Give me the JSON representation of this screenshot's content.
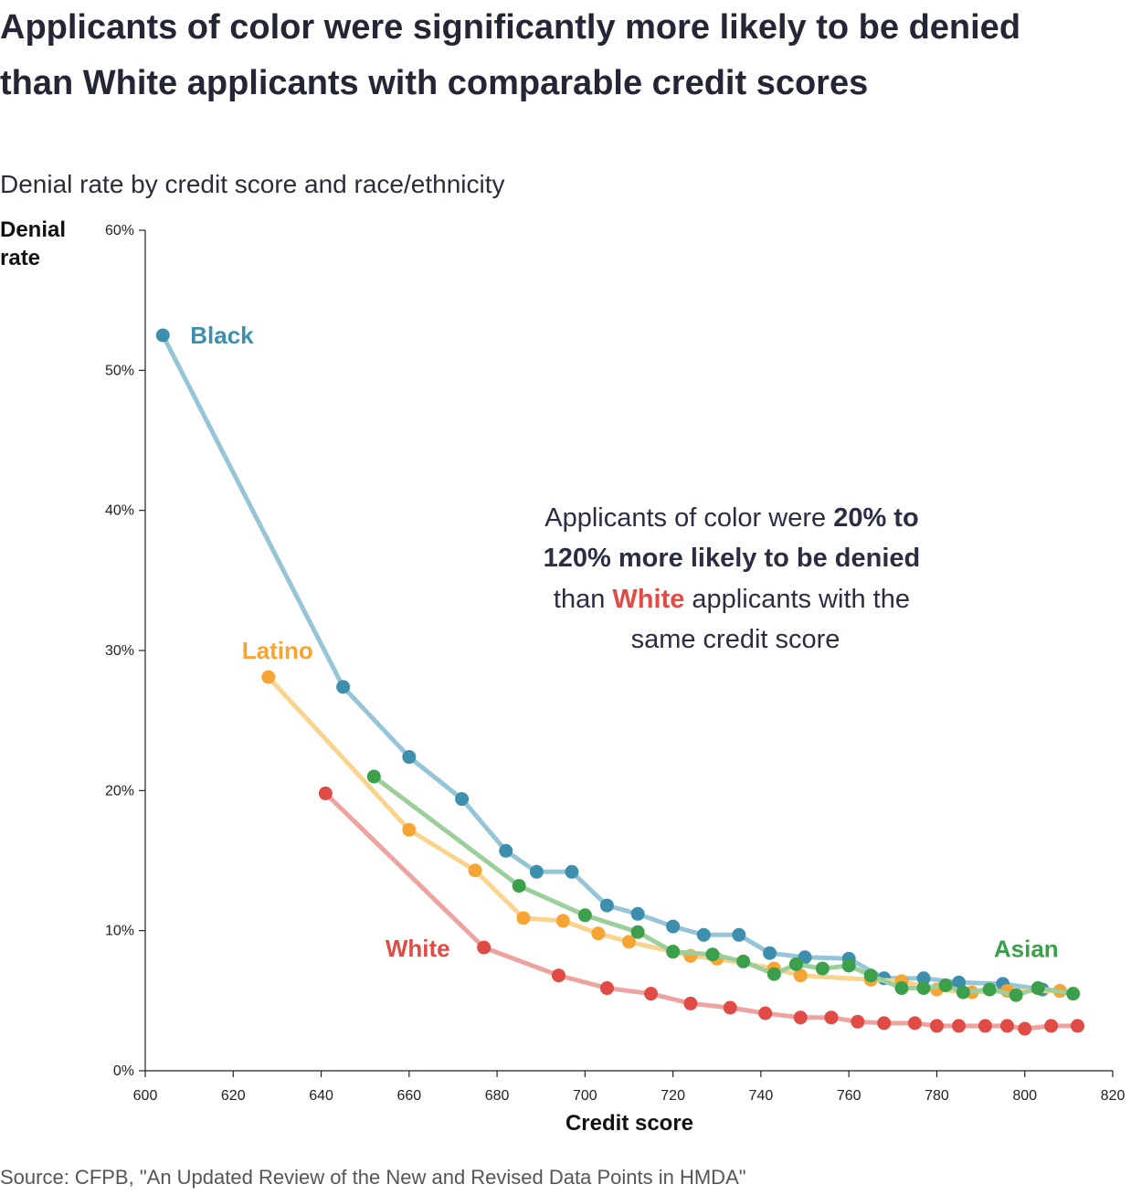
{
  "title": "Applicants of color were significantly more likely to be denied than White applicants with comparable credit scores",
  "subtitle": "Denial rate by credit score and race/ethnicity",
  "source": "Source: CFPB, \"An Updated Review of the New and Revised Data Points in HMDA\"",
  "annotation": {
    "line1_regular": "Applicants of color were ",
    "line1_bold": "20% to",
    "line2_bold": "120% more likely to be denied",
    "line3_before": "than ",
    "line3_highlight": "White",
    "line3_after": " applicants with the",
    "line4": "same credit score"
  },
  "chart_data": {
    "type": "line",
    "xlabel": "Credit score",
    "ylabel": "Denial rate",
    "xlim": [
      600,
      820
    ],
    "ylim": [
      0,
      60
    ],
    "x_ticks": [
      "600",
      "620",
      "640",
      "660",
      "680",
      "700",
      "720",
      "740",
      "760",
      "780",
      "800",
      "820"
    ],
    "y_ticks": [
      "0%",
      "10%",
      "20%",
      "30%",
      "40%",
      "50%",
      "60%"
    ],
    "series": [
      {
        "name": "Black",
        "color": "#3d8fad",
        "line_color": "#96c5d8",
        "points": [
          [
            604,
            52.5
          ],
          [
            645,
            27.4
          ],
          [
            660,
            22.4
          ],
          [
            672,
            19.4
          ],
          [
            682,
            15.7
          ],
          [
            689,
            14.2
          ],
          [
            697,
            14.2
          ],
          [
            705,
            11.8
          ],
          [
            712,
            11.2
          ],
          [
            720,
            10.3
          ],
          [
            727,
            9.7
          ],
          [
            735,
            9.7
          ],
          [
            742,
            8.4
          ],
          [
            750,
            8.1
          ],
          [
            760,
            8.0
          ],
          [
            768,
            6.6
          ],
          [
            777,
            6.6
          ],
          [
            785,
            6.3
          ],
          [
            795,
            6.2
          ],
          [
            804,
            5.8
          ],
          [
            808,
            5.7
          ]
        ]
      },
      {
        "name": "Latino",
        "color": "#f6a534",
        "line_color": "#fad38c",
        "points": [
          [
            628,
            28.1
          ],
          [
            660,
            17.2
          ],
          [
            675,
            14.3
          ],
          [
            686,
            10.9
          ],
          [
            695,
            10.7
          ],
          [
            703,
            9.8
          ],
          [
            710,
            9.2
          ],
          [
            720,
            8.5
          ],
          [
            724,
            8.2
          ],
          [
            730,
            8.0
          ],
          [
            743,
            7.3
          ],
          [
            749,
            6.8
          ],
          [
            765,
            6.5
          ],
          [
            772,
            6.4
          ],
          [
            780,
            5.8
          ],
          [
            788,
            5.6
          ],
          [
            796,
            5.7
          ],
          [
            808,
            5.7
          ]
        ]
      },
      {
        "name": "Asian",
        "color": "#3c9f4c",
        "line_color": "#9ccf9c",
        "points": [
          [
            652,
            21.0
          ],
          [
            685,
            13.2
          ],
          [
            700,
            11.1
          ],
          [
            712,
            9.9
          ],
          [
            720,
            8.5
          ],
          [
            729,
            8.3
          ],
          [
            736,
            7.8
          ],
          [
            743,
            6.9
          ],
          [
            748,
            7.6
          ],
          [
            754,
            7.3
          ],
          [
            760,
            7.5
          ],
          [
            765,
            6.8
          ],
          [
            772,
            5.9
          ],
          [
            777,
            5.9
          ],
          [
            782,
            6.1
          ],
          [
            786,
            5.6
          ],
          [
            792,
            5.8
          ],
          [
            798,
            5.4
          ],
          [
            803,
            5.9
          ],
          [
            811,
            5.5
          ]
        ]
      },
      {
        "name": "White",
        "color": "#e14b46",
        "line_color": "#efa3a0",
        "points": [
          [
            641,
            19.8
          ],
          [
            677,
            8.8
          ],
          [
            694,
            6.8
          ],
          [
            705,
            5.9
          ],
          [
            715,
            5.5
          ],
          [
            724,
            4.8
          ],
          [
            733,
            4.5
          ],
          [
            741,
            4.1
          ],
          [
            749,
            3.8
          ],
          [
            756,
            3.8
          ],
          [
            762,
            3.5
          ],
          [
            768,
            3.4
          ],
          [
            775,
            3.4
          ],
          [
            780,
            3.2
          ],
          [
            785,
            3.2
          ],
          [
            791,
            3.2
          ],
          [
            796,
            3.2
          ],
          [
            800,
            3.0
          ],
          [
            806,
            3.2
          ],
          [
            812,
            3.2
          ]
        ]
      }
    ]
  }
}
